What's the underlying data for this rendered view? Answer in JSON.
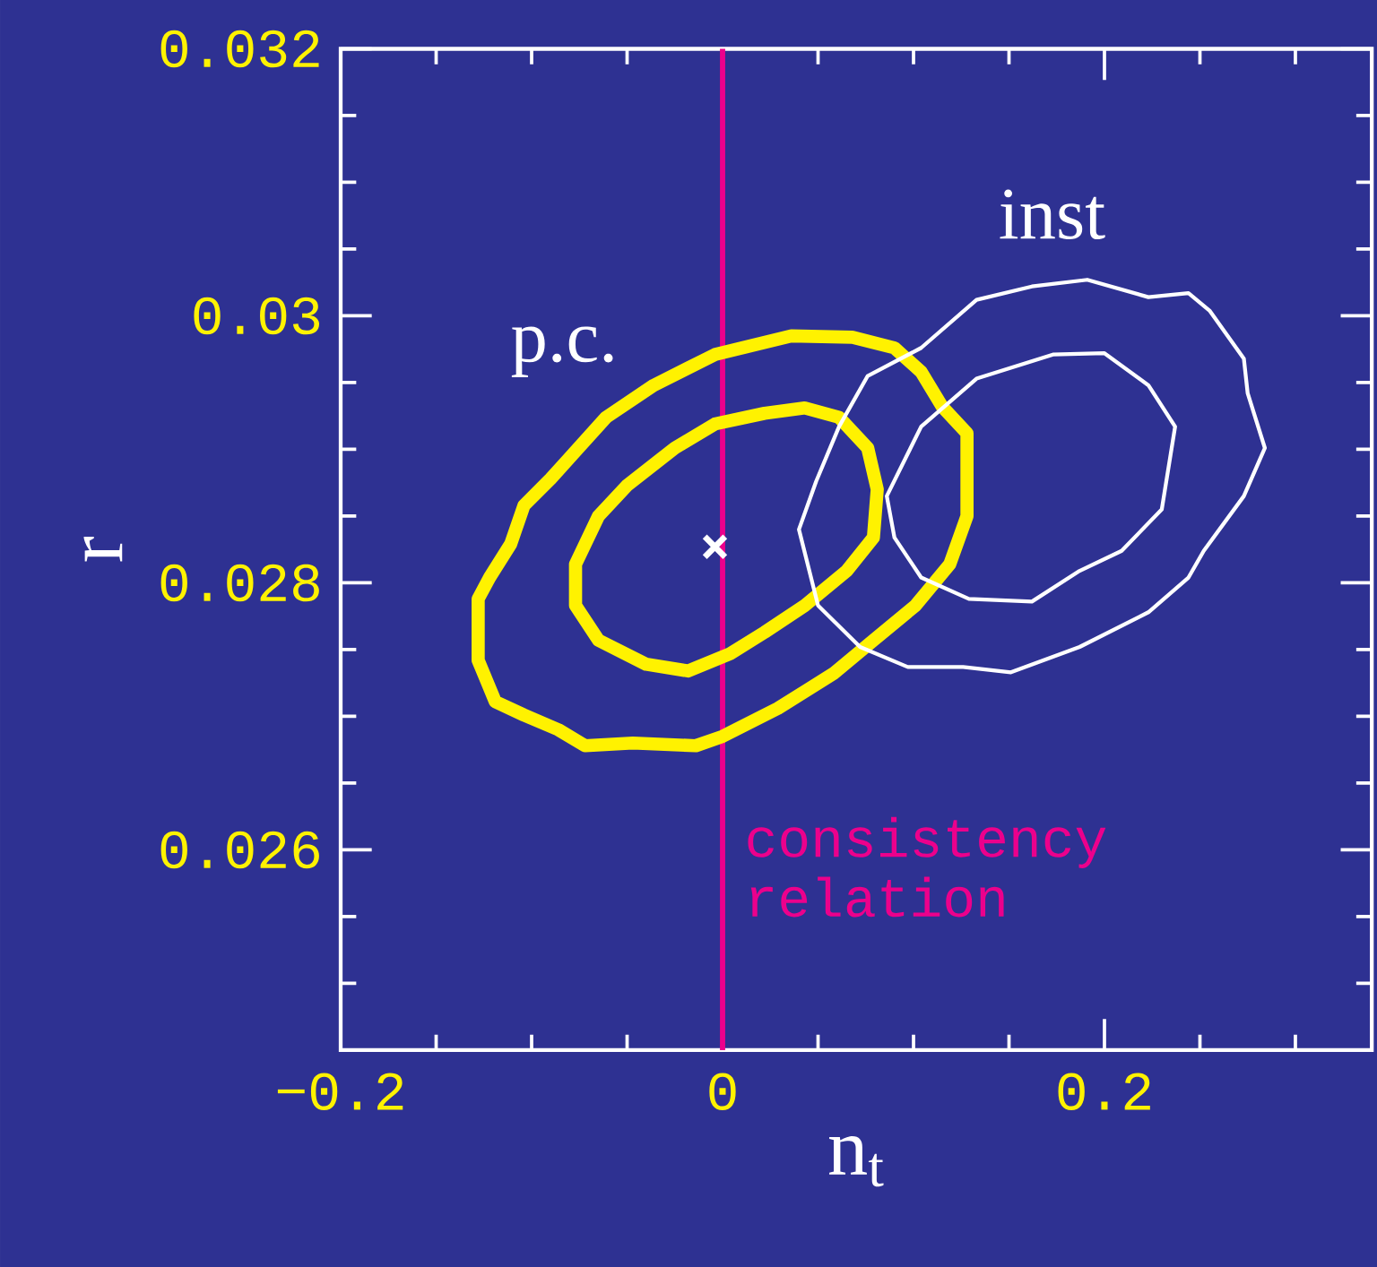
{
  "chart_data": {
    "type": "scatter",
    "xlabel": "n$_{t}$",
    "ylabel": "r",
    "xlim": [
      -0.2,
      0.34
    ],
    "ylim": [
      0.0245,
      0.032
    ],
    "xticks": [
      {
        "value": -0.2,
        "label": "−0.2"
      },
      {
        "value": -0.15,
        "label": null
      },
      {
        "value": -0.1,
        "label": null
      },
      {
        "value": -0.05,
        "label": null
      },
      {
        "value": 0,
        "label": "0"
      },
      {
        "value": 0.05,
        "label": null
      },
      {
        "value": 0.1,
        "label": null
      },
      {
        "value": 0.15,
        "label": null
      },
      {
        "value": 0.2,
        "label": "0.2"
      },
      {
        "value": 0.25,
        "label": null
      },
      {
        "value": 0.3,
        "label": null
      }
    ],
    "yticks": [
      {
        "value": 0.025,
        "label": null
      },
      {
        "value": 0.0255,
        "label": null
      },
      {
        "value": 0.026,
        "label": "0.026"
      },
      {
        "value": 0.0265,
        "label": null
      },
      {
        "value": 0.027,
        "label": null
      },
      {
        "value": 0.0275,
        "label": null
      },
      {
        "value": 0.028,
        "label": "0.028"
      },
      {
        "value": 0.0285,
        "label": null
      },
      {
        "value": 0.029,
        "label": null
      },
      {
        "value": 0.0295,
        "label": null
      },
      {
        "value": 0.03,
        "label": "0.03"
      },
      {
        "value": 0.0305,
        "label": null
      },
      {
        "value": 0.031,
        "label": null
      },
      {
        "value": 0.0315,
        "label": null
      },
      {
        "value": 0.032,
        "label": "0.032"
      }
    ],
    "grid": false,
    "marker": "cross",
    "series": [
      {
        "color": "#ffffff",
        "x": [
          -0.004
        ],
        "values": [
          0.02827
        ]
      }
    ],
    "ref_lines": [
      {
        "axis": "x",
        "value": 0,
        "label": "consistency relation",
        "color": "#ec008c"
      }
    ],
    "annotations": [
      "p.c.",
      "inst"
    ]
  }
}
